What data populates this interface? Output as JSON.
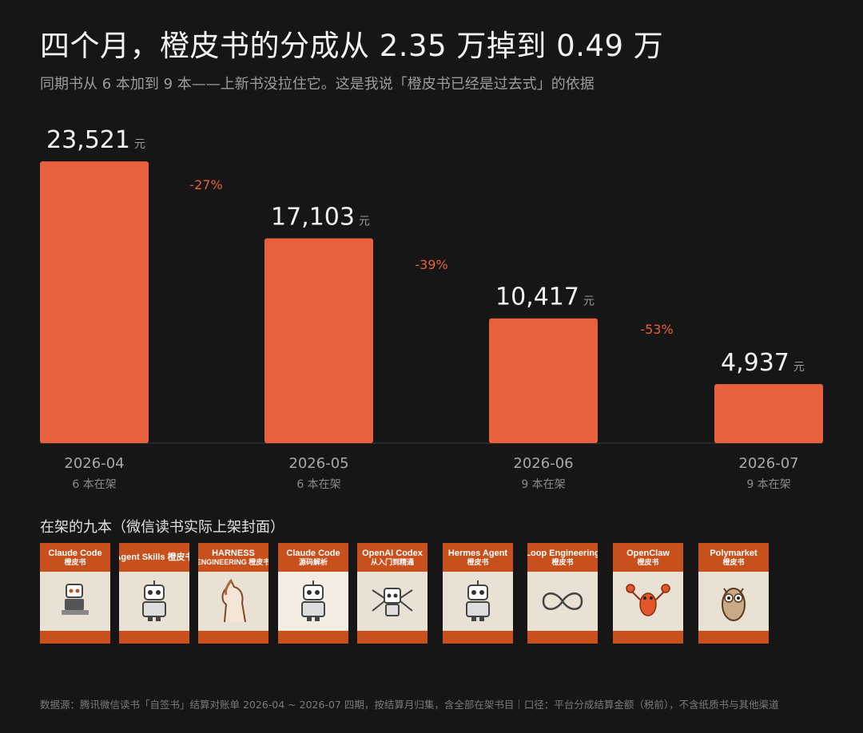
{
  "header": {
    "title": "四个月，橙皮书的分成从 2.35 万掉到 0.49 万",
    "subtitle": "同期书从 6 本加到 9 本——上新书没拉住它。这是我说「橙皮书已经是过去式」的依据"
  },
  "chart_data": {
    "type": "bar",
    "categories": [
      "2026-04",
      "2026-05",
      "2026-06",
      "2026-07"
    ],
    "sublabels": [
      "6 本在架",
      "6 本在架",
      "9 本在架",
      "9 本在架"
    ],
    "values": [
      23521,
      17103,
      10417,
      4937
    ],
    "value_labels": [
      "23,521",
      "17,103",
      "10,417",
      "4,937"
    ],
    "unit": "元",
    "changes": [
      "-27%",
      "-39%",
      "-53%"
    ],
    "ylim": [
      0,
      25000
    ],
    "colors": {
      "bar": "#e8603c",
      "change": "#e8603c"
    }
  },
  "covers": {
    "section_title": "在架的九本（微信读书实际上架封面）",
    "items": [
      {
        "t1": "Claude Code",
        "t2": "橙皮书",
        "icon": "robot-laptop-icon"
      },
      {
        "t1": "Agent Skills 橙皮书",
        "t2": "",
        "icon": "robot-icon"
      },
      {
        "t1": "HARNESS",
        "t2": "ENGINEERING 橙皮书",
        "icon": "horse-icon"
      },
      {
        "t1": "Claude Code",
        "t2": "源码解析",
        "icon": "robot-icon"
      },
      {
        "t1": "OpenAI Codex",
        "t2": "从入门到精通",
        "icon": "robot-arms-icon"
      },
      {
        "t1": "Hermes Agent",
        "t2": "橙皮书",
        "icon": "robot-icon"
      },
      {
        "t1": "Loop Engineering",
        "t2": "橙皮书",
        "icon": "infinity-loop-icon"
      },
      {
        "t1": "OpenClaw",
        "t2": "橙皮书",
        "icon": "lobster-icon"
      },
      {
        "t1": "Polymarket",
        "t2": "橙皮书",
        "icon": "owl-icon"
      }
    ]
  },
  "footer": {
    "source": "数据源：腾讯微信读书「自签书」结算对账单 2026-04 ~ 2026-07 四期，按结算月归集，含全部在架书目｜口径：平台分成结算金额（税前），不含纸质书与其他渠道"
  }
}
